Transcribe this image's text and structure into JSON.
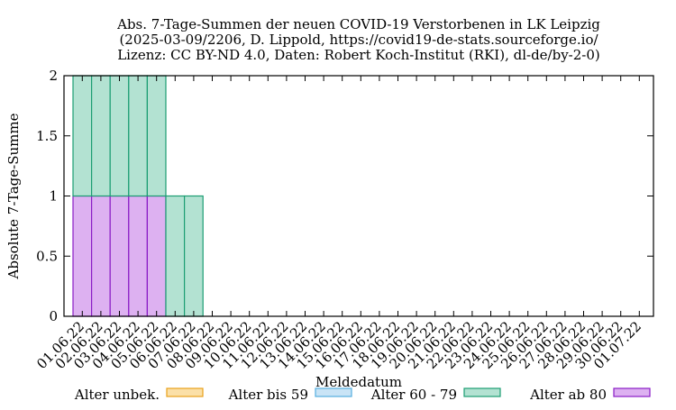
{
  "chart_data": {
    "type": "bar",
    "stacked": true,
    "title_lines": [
      "Abs. 7-Tage-Summen der neuen COVID-19 Verstorbenen in LK Leipzig",
      "(2025-03-09/2206, D. Lippold, https://covid19-de-stats.sourceforge.io/",
      "Lizenz: CC BY-ND 4.0, Daten: Robert Koch-Institut (RKI), dl-de/by-2-0)"
    ],
    "xlabel": "Meldedatum",
    "ylabel": "Absolute 7-Tage-Summe",
    "ylim": [
      0,
      2
    ],
    "yticks": [
      "0",
      "0.5",
      "1",
      "1.5",
      "2"
    ],
    "categories": [
      "01.06.22",
      "02.06.22",
      "03.06.22",
      "04.06.22",
      "05.06.22",
      "06.06.22",
      "07.06.22",
      "08.06.22",
      "09.06.22",
      "10.06.22",
      "11.06.22",
      "12.06.22",
      "13.06.22",
      "14.06.22",
      "15.06.22",
      "16.06.22",
      "17.06.22",
      "18.06.22",
      "19.06.22",
      "20.06.22",
      "21.06.22",
      "22.06.22",
      "23.06.22",
      "24.06.22",
      "25.06.22",
      "26.06.22",
      "27.06.22",
      "28.06.22",
      "29.06.22",
      "30.06.22",
      "01.07.22"
    ],
    "series": [
      {
        "name": "Alter unbek.",
        "color": "#fbe0a8",
        "stroke": "#e8a11a",
        "values": [
          0,
          0,
          0,
          0,
          0,
          0,
          0,
          0,
          0,
          0,
          0,
          0,
          0,
          0,
          0,
          0,
          0,
          0,
          0,
          0,
          0,
          0,
          0,
          0,
          0,
          0,
          0,
          0,
          0,
          0,
          0
        ]
      },
      {
        "name": "Alter bis 59",
        "color": "#c9e4f6",
        "stroke": "#55aee0",
        "values": [
          0,
          0,
          0,
          0,
          0,
          0,
          0,
          0,
          0,
          0,
          0,
          0,
          0,
          0,
          0,
          0,
          0,
          0,
          0,
          0,
          0,
          0,
          0,
          0,
          0,
          0,
          0,
          0,
          0,
          0,
          0
        ]
      },
      {
        "name": "Alter 60 - 79",
        "color": "#b3e2d2",
        "stroke": "#1a9d72",
        "values": [
          1,
          1,
          1,
          1,
          1,
          1,
          1,
          0,
          0,
          0,
          0,
          0,
          0,
          0,
          0,
          0,
          0,
          0,
          0,
          0,
          0,
          0,
          0,
          0,
          0,
          0,
          0,
          0,
          0,
          0,
          0
        ]
      },
      {
        "name": "Alter ab 80",
        "color": "#ddb1f1",
        "stroke": "#8a1cc6",
        "values": [
          1,
          1,
          1,
          1,
          1,
          0,
          0,
          0,
          0,
          0,
          0,
          0,
          0,
          0,
          0,
          0,
          0,
          0,
          0,
          0,
          0,
          0,
          0,
          0,
          0,
          0,
          0,
          0,
          0,
          0,
          0
        ]
      }
    ],
    "stack_order_bottom_to_top": [
      "Alter ab 80",
      "Alter 60 - 79",
      "Alter bis 59",
      "Alter unbek."
    ],
    "legend_position": "bottom"
  }
}
